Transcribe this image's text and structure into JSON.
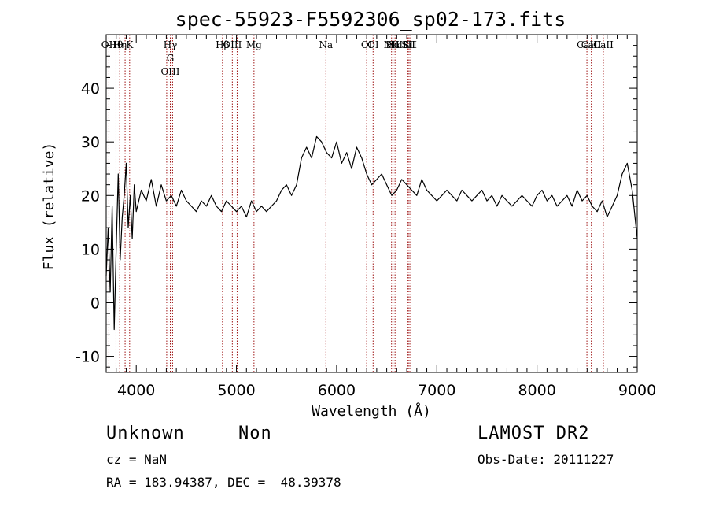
{
  "chart_data": {
    "type": "line",
    "title": "spec-55923-F5592306_sp02-173.fits",
    "xlabel": "Wavelength (Å)",
    "ylabel": "Flux (relative)",
    "xlim": [
      3700,
      9000
    ],
    "ylim": [
      -13,
      50
    ],
    "xticks": [
      4000,
      5000,
      6000,
      7000,
      8000,
      9000
    ],
    "yticks": [
      -10,
      0,
      10,
      20,
      30,
      40
    ],
    "grid": false,
    "colors": {
      "spectrum": "#000000",
      "lines": "#a01818"
    },
    "series": [
      {
        "x": [
          3700,
          3720,
          3740,
          3760,
          3780,
          3800,
          3820,
          3840,
          3860,
          3880,
          3900,
          3920,
          3940,
          3960,
          3980,
          4000,
          4050,
          4100,
          4150,
          4200,
          4250,
          4300,
          4350,
          4400,
          4450,
          4500,
          4550,
          4600,
          4650,
          4700,
          4750,
          4800,
          4850,
          4900,
          4950,
          5000,
          5050,
          5100,
          5150,
          5200,
          5250,
          5300,
          5350,
          5400,
          5450,
          5500,
          5550,
          5600,
          5650,
          5700,
          5750,
          5800,
          5850,
          5900,
          5950,
          6000,
          6050,
          6100,
          6150,
          6200,
          6250,
          6300,
          6350,
          6400,
          6450,
          6500,
          6550,
          6600,
          6650,
          6700,
          6750,
          6800,
          6850,
          6900,
          6950,
          7000,
          7050,
          7100,
          7150,
          7200,
          7250,
          7300,
          7350,
          7400,
          7450,
          7500,
          7550,
          7600,
          7650,
          7700,
          7750,
          7800,
          7850,
          7900,
          7950,
          8000,
          8050,
          8100,
          8150,
          8200,
          8250,
          8300,
          8350,
          8400,
          8450,
          8500,
          8550,
          8600,
          8650,
          8700,
          8750,
          8800,
          8850,
          8900,
          8950,
          9000
        ],
        "y": [
          5,
          14,
          2,
          18,
          -5,
          10,
          24,
          8,
          16,
          20,
          26,
          14,
          20,
          12,
          22,
          17,
          21,
          19,
          23,
          18,
          22,
          19,
          20,
          18,
          21,
          19,
          18,
          17,
          19,
          18,
          20,
          18,
          17,
          19,
          18,
          17,
          18,
          16,
          19,
          17,
          18,
          17,
          18,
          19,
          21,
          22,
          20,
          22,
          27,
          29,
          27,
          31,
          30,
          28,
          27,
          30,
          26,
          28,
          25,
          29,
          27,
          24,
          22,
          23,
          24,
          22,
          20,
          21,
          23,
          22,
          21,
          20,
          23,
          21,
          20,
          19,
          20,
          21,
          20,
          19,
          21,
          20,
          19,
          20,
          21,
          19,
          20,
          18,
          20,
          19,
          18,
          19,
          20,
          19,
          18,
          20,
          21,
          19,
          20,
          18,
          19,
          20,
          18,
          21,
          19,
          20,
          18,
          17,
          19,
          16,
          18,
          20,
          24,
          26,
          21,
          12
        ]
      }
    ],
    "features": [
      {
        "wl": 3727,
        "labels": [
          "OII"
        ]
      },
      {
        "wl": 3798,
        "labels": [
          "Hθ"
        ]
      },
      {
        "wl": 3835,
        "labels": [
          "Hη"
        ]
      },
      {
        "wl": 3889,
        "labels": []
      },
      {
        "wl": 3934,
        "labels": [
          "K"
        ]
      },
      {
        "wl": 4304,
        "labels": []
      },
      {
        "wl": 4340,
        "labels": [
          "Hγ",
          "G",
          "OIII"
        ]
      },
      {
        "wl": 4363,
        "labels": []
      },
      {
        "wl": 4861,
        "labels": [
          "Hβ"
        ]
      },
      {
        "wl": 4959,
        "labels": [
          "OIII"
        ]
      },
      {
        "wl": 5007,
        "labels": []
      },
      {
        "wl": 5175,
        "labels": [
          "Mg"
        ]
      },
      {
        "wl": 5893,
        "labels": [
          "Na"
        ]
      },
      {
        "wl": 6300,
        "labels": [
          "OI"
        ]
      },
      {
        "wl": 6364,
        "labels": [
          "OI"
        ]
      },
      {
        "wl": 6548,
        "labels": [
          "NII"
        ]
      },
      {
        "wl": 6563,
        "labels": [
          "Hα"
        ]
      },
      {
        "wl": 6583,
        "labels": [
          "NII"
        ]
      },
      {
        "wl": 6707,
        "labels": [
          "Li"
        ]
      },
      {
        "wl": 6716,
        "labels": [
          "SII"
        ]
      },
      {
        "wl": 6731,
        "labels": [
          "SII"
        ]
      },
      {
        "wl": 8498,
        "labels": [
          "CaII"
        ]
      },
      {
        "wl": 8542,
        "labels": [
          "CaII"
        ]
      },
      {
        "wl": 8662,
        "labels": [
          "CaII"
        ]
      }
    ]
  },
  "info": {
    "class": "Unknown",
    "subclass": "Non",
    "cz": "cz = NaN",
    "coords": "RA = 183.94387, DEC =  48.39378",
    "survey": "LAMOST DR2",
    "obsdate": "Obs-Date: 20111227"
  }
}
